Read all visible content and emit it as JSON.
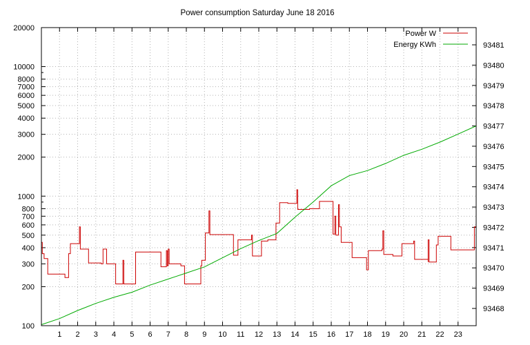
{
  "chart_data": {
    "type": "line",
    "title": "Power consumption Saturday June 18 2016",
    "x_ticks": [
      1,
      2,
      3,
      4,
      5,
      6,
      7,
      8,
      9,
      10,
      11,
      12,
      13,
      14,
      15,
      16,
      17,
      18,
      19,
      20,
      21,
      22,
      23
    ],
    "xlim": [
      0,
      24
    ],
    "y_left": {
      "scale": "log",
      "lim": [
        100,
        20000
      ],
      "ticks": [
        100,
        200,
        300,
        400,
        500,
        600,
        700,
        800,
        1000,
        2000,
        3000,
        4000,
        5000,
        6000,
        7000,
        8000,
        10000,
        20000
      ],
      "tick_labels": [
        "100",
        "200",
        "300",
        "400",
        "500",
        "600",
        "700",
        "800",
        "1000",
        "2000",
        "3000",
        "4000",
        "5000",
        "6000",
        "7000",
        "8000",
        "10000",
        "20000"
      ]
    },
    "y_right": {
      "scale": "linear",
      "lim": [
        93467.15,
        93481.85
      ],
      "ticks": [
        93468,
        93469,
        93470,
        93471,
        93472,
        93473,
        93474,
        93475,
        93476,
        93477,
        93478,
        93479,
        93480,
        93481
      ],
      "tick_labels": [
        "93468",
        "93469",
        "93470",
        "93471",
        "93472",
        "93473",
        "93474",
        "93475",
        "93476",
        "93477",
        "93478",
        "93479",
        "93480",
        "93481"
      ]
    },
    "grid": true,
    "legend_position": "top-right",
    "series": [
      {
        "name": "Power W",
        "axis": "left",
        "color": "#cc0000",
        "step": true,
        "points": [
          [
            0,
            440
          ],
          [
            0.05,
            360
          ],
          [
            0.15,
            330
          ],
          [
            0.35,
            250
          ],
          [
            1.3,
            235
          ],
          [
            1.5,
            360
          ],
          [
            1.6,
            430
          ],
          [
            2.1,
            580
          ],
          [
            2.15,
            390
          ],
          [
            2.6,
            305
          ],
          [
            3.3,
            300
          ],
          [
            3.4,
            390
          ],
          [
            3.6,
            300
          ],
          [
            4.1,
            210
          ],
          [
            4.5,
            320
          ],
          [
            4.55,
            210
          ],
          [
            5.2,
            370
          ],
          [
            6.6,
            285
          ],
          [
            6.9,
            380
          ],
          [
            6.95,
            290
          ],
          [
            7.0,
            390
          ],
          [
            7.05,
            300
          ],
          [
            7.7,
            290
          ],
          [
            7.9,
            210
          ],
          [
            8.8,
            290
          ],
          [
            8.85,
            320
          ],
          [
            9.05,
            520
          ],
          [
            9.25,
            770
          ],
          [
            9.3,
            505
          ],
          [
            10.6,
            350
          ],
          [
            10.85,
            460
          ],
          [
            11.6,
            500
          ],
          [
            11.65,
            345
          ],
          [
            12.15,
            450
          ],
          [
            12.5,
            460
          ],
          [
            12.95,
            620
          ],
          [
            13.15,
            890
          ],
          [
            13.6,
            880
          ],
          [
            14.1,
            1120
          ],
          [
            14.15,
            790
          ],
          [
            14.8,
            800
          ],
          [
            15.35,
            910
          ],
          [
            16.1,
            510
          ],
          [
            16.2,
            700
          ],
          [
            16.25,
            500
          ],
          [
            16.4,
            860
          ],
          [
            16.45,
            580
          ],
          [
            16.55,
            440
          ],
          [
            17.15,
            335
          ],
          [
            17.95,
            270
          ],
          [
            18.05,
            380
          ],
          [
            18.8,
            390
          ],
          [
            18.85,
            540
          ],
          [
            18.9,
            355
          ],
          [
            19.4,
            345
          ],
          [
            19.9,
            430
          ],
          [
            20.55,
            450
          ],
          [
            20.6,
            325
          ],
          [
            21.35,
            310
          ],
          [
            21.35,
            460
          ],
          [
            21.4,
            310
          ],
          [
            21.8,
            420
          ],
          [
            21.9,
            490
          ],
          [
            22.6,
            385
          ],
          [
            23.9,
            580
          ],
          [
            24,
            590
          ]
        ]
      },
      {
        "name": "Energy KWh",
        "axis": "right",
        "color": "#00aa00",
        "points": [
          [
            0,
            93467.2
          ],
          [
            1,
            93467.5
          ],
          [
            2,
            93467.9
          ],
          [
            3,
            93468.25
          ],
          [
            4,
            93468.55
          ],
          [
            5,
            93468.8
          ],
          [
            6,
            93469.15
          ],
          [
            7,
            93469.45
          ],
          [
            8,
            93469.75
          ],
          [
            9,
            93470.05
          ],
          [
            10,
            93470.5
          ],
          [
            11,
            93470.95
          ],
          [
            12,
            93471.35
          ],
          [
            13,
            93471.7
          ],
          [
            14,
            93472.5
          ],
          [
            15,
            93473.25
          ],
          [
            16,
            93474.05
          ],
          [
            17,
            93474.55
          ],
          [
            18,
            93474.8
          ],
          [
            19,
            93475.15
          ],
          [
            20,
            93475.55
          ],
          [
            21,
            93475.85
          ],
          [
            22,
            93476.2
          ],
          [
            23,
            93476.6
          ],
          [
            24,
            93477.0
          ]
        ]
      }
    ]
  }
}
